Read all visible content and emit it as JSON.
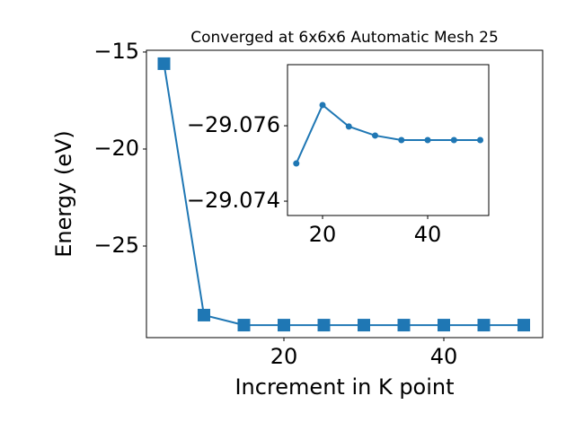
{
  "chart_data": [
    {
      "type": "line",
      "title": "Converged at 6x6x6 Automatic Mesh 25",
      "x_label": "Increment in K point",
      "y_label": "Energy (eV)",
      "x": [
        5,
        10,
        15,
        20,
        25,
        30,
        35,
        40,
        45,
        50
      ],
      "series": [
        {
          "color": "#1f77b4",
          "marker": "square",
          "values": [
            -15.6,
            -28.56,
            -29.075,
            -29.07655,
            -29.07598,
            -29.07574,
            -29.07562,
            -29.07562,
            -29.07562,
            -29.07562
          ]
        }
      ],
      "xlim": [
        2.81,
        52.36
      ],
      "ylim": [
        -29.72,
        -14.91
      ],
      "xticks": [
        20,
        40
      ],
      "yticks": [
        {
          "value": -15,
          "label": "−15"
        },
        {
          "value": -20,
          "label": "−20"
        },
        {
          "value": -25,
          "label": "−25"
        }
      ]
    },
    {
      "type": "line",
      "x": [
        15,
        20,
        25,
        30,
        35,
        40,
        45,
        50
      ],
      "series": [
        {
          "color": "#1f77b4",
          "marker": "circle",
          "values": [
            -29.075,
            -29.07655,
            -29.07598,
            -29.07574,
            -29.07562,
            -29.07562,
            -29.07562,
            -29.07562
          ]
        }
      ],
      "xlim": [
        13.33,
        51.62
      ],
      "ylim": [
        -29.07362,
        -29.07762
      ],
      "xticks": [
        20,
        40
      ],
      "yticks": [
        {
          "value": -29.076,
          "label": "−29.076"
        },
        {
          "value": -29.074,
          "label": "−29.074"
        }
      ]
    }
  ]
}
